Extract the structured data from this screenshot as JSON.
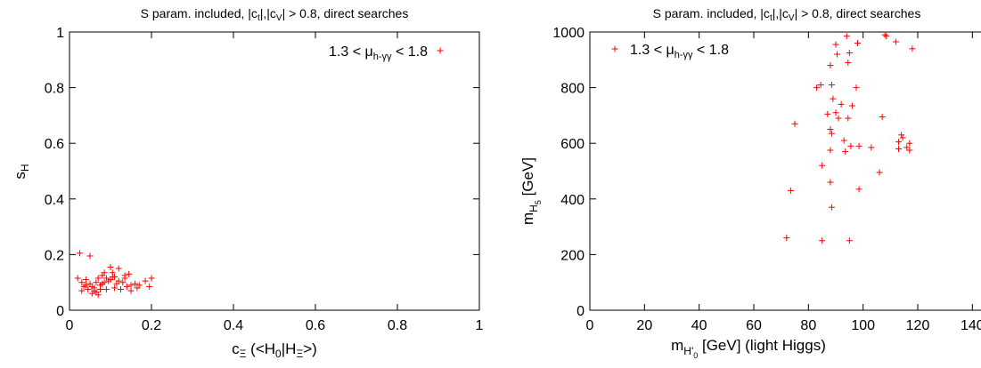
{
  "chart_data": [
    {
      "type": "scatter",
      "title": "S param. included, |c_t|,|c_V| > 0.8, direct searches",
      "xlabel": "c_Ξ (<H_0|H_Ξ>)",
      "ylabel": "s_H",
      "xlim": [
        0,
        1
      ],
      "ylim": [
        0,
        1
      ],
      "xticks": [
        "0",
        "0.2",
        "0.4",
        "0.6",
        "0.8",
        "1"
      ],
      "yticks": [
        "0",
        "0.2",
        "0.4",
        "0.6",
        "0.8",
        "1"
      ],
      "grid": false,
      "legend_position": "top-right",
      "marker_color": "#ff0000",
      "series": [
        {
          "name": "1.3 < μ_{h-γγ} < 1.8",
          "points": [
            [
              0.025,
              0.205
            ],
            [
              0.05,
              0.195
            ],
            [
              0.02,
              0.115
            ],
            [
              0.03,
              0.1
            ],
            [
              0.04,
              0.11
            ],
            [
              0.035,
              0.085
            ],
            [
              0.045,
              0.075
            ],
            [
              0.05,
              0.095
            ],
            [
              0.055,
              0.06
            ],
            [
              0.06,
              0.08
            ],
            [
              0.065,
              0.1
            ],
            [
              0.07,
              0.115
            ],
            [
              0.075,
              0.09
            ],
            [
              0.08,
              0.125
            ],
            [
              0.085,
              0.1
            ],
            [
              0.09,
              0.115
            ],
            [
              0.095,
              0.105
            ],
            [
              0.1,
              0.155
            ],
            [
              0.105,
              0.135
            ],
            [
              0.11,
              0.12
            ],
            [
              0.115,
              0.095
            ],
            [
              0.12,
              0.15
            ],
            [
              0.125,
              0.075
            ],
            [
              0.13,
              0.1
            ],
            [
              0.135,
              0.115
            ],
            [
              0.14,
              0.085
            ],
            [
              0.145,
              0.13
            ],
            [
              0.15,
              0.09
            ],
            [
              0.16,
              0.095
            ],
            [
              0.165,
              0.08
            ],
            [
              0.17,
              0.09
            ],
            [
              0.185,
              0.105
            ],
            [
              0.2,
              0.115
            ],
            [
              0.195,
              0.085
            ],
            [
              0.06,
              0.07
            ],
            [
              0.07,
              0.055
            ],
            [
              0.04,
              0.09
            ],
            [
              0.09,
              0.075
            ],
            [
              0.1,
              0.11
            ],
            [
              0.12,
              0.105
            ],
            [
              0.03,
              0.07
            ],
            [
              0.055,
              0.085
            ],
            [
              0.08,
              0.095
            ],
            [
              0.105,
              0.12
            ],
            [
              0.085,
              0.135
            ],
            [
              0.065,
              0.065
            ],
            [
              0.075,
              0.075
            ],
            [
              0.11,
              0.08
            ],
            [
              0.135,
              0.125
            ],
            [
              0.15,
              0.07
            ]
          ]
        }
      ]
    },
    {
      "type": "scatter",
      "title": "S param. included, |c_t|,|c_V| > 0.8, direct searches",
      "xlabel": "m_H'_0 [GeV] (light Higgs)",
      "ylabel": "m_H_5 [GeV]",
      "xlim": [
        0,
        150
      ],
      "ylim": [
        0,
        1000
      ],
      "xticks": [
        "0",
        "20",
        "40",
        "60",
        "80",
        "100",
        "120",
        "140"
      ],
      "yticks": [
        "0",
        "200",
        "400",
        "600",
        "800",
        "1000"
      ],
      "grid": false,
      "legend_position": "top-left",
      "marker_color": "#ff0000",
      "series": [
        {
          "name": "1.3 < μ_{h-γγ} < 1.8",
          "points": [
            [
              108,
              990
            ],
            [
              108.5,
              985
            ],
            [
              112,
              965
            ],
            [
              118,
              940
            ],
            [
              94,
              985
            ],
            [
              98,
              960
            ],
            [
              90,
              955
            ],
            [
              90.5,
              920
            ],
            [
              95,
              925
            ],
            [
              88,
              880
            ],
            [
              94.5,
              890
            ],
            [
              83,
              800
            ],
            [
              84.5,
              810
            ],
            [
              88.5,
              810
            ],
            [
              97.5,
              800
            ],
            [
              89,
              760
            ],
            [
              92,
              740
            ],
            [
              96,
              735
            ],
            [
              87,
              705
            ],
            [
              90,
              710
            ],
            [
              75,
              670
            ],
            [
              88,
              650
            ],
            [
              88.5,
              635
            ],
            [
              91,
              690
            ],
            [
              94.5,
              690
            ],
            [
              107,
              695
            ],
            [
              93,
              610
            ],
            [
              98.5,
              590
            ],
            [
              95.5,
              590
            ],
            [
              93.5,
              570
            ],
            [
              88,
              575
            ],
            [
              114,
              630
            ],
            [
              114.5,
              620
            ],
            [
              113,
              605
            ],
            [
              117,
              600
            ],
            [
              116,
              585
            ],
            [
              113,
              580
            ],
            [
              117,
              575
            ],
            [
              103,
              585
            ],
            [
              85,
              520
            ],
            [
              106,
              495
            ],
            [
              88,
              460
            ],
            [
              98.5,
              435
            ],
            [
              73.5,
              430
            ],
            [
              88.5,
              370
            ],
            [
              72,
              260
            ],
            [
              85,
              250
            ],
            [
              95,
              250
            ]
          ]
        }
      ]
    }
  ]
}
